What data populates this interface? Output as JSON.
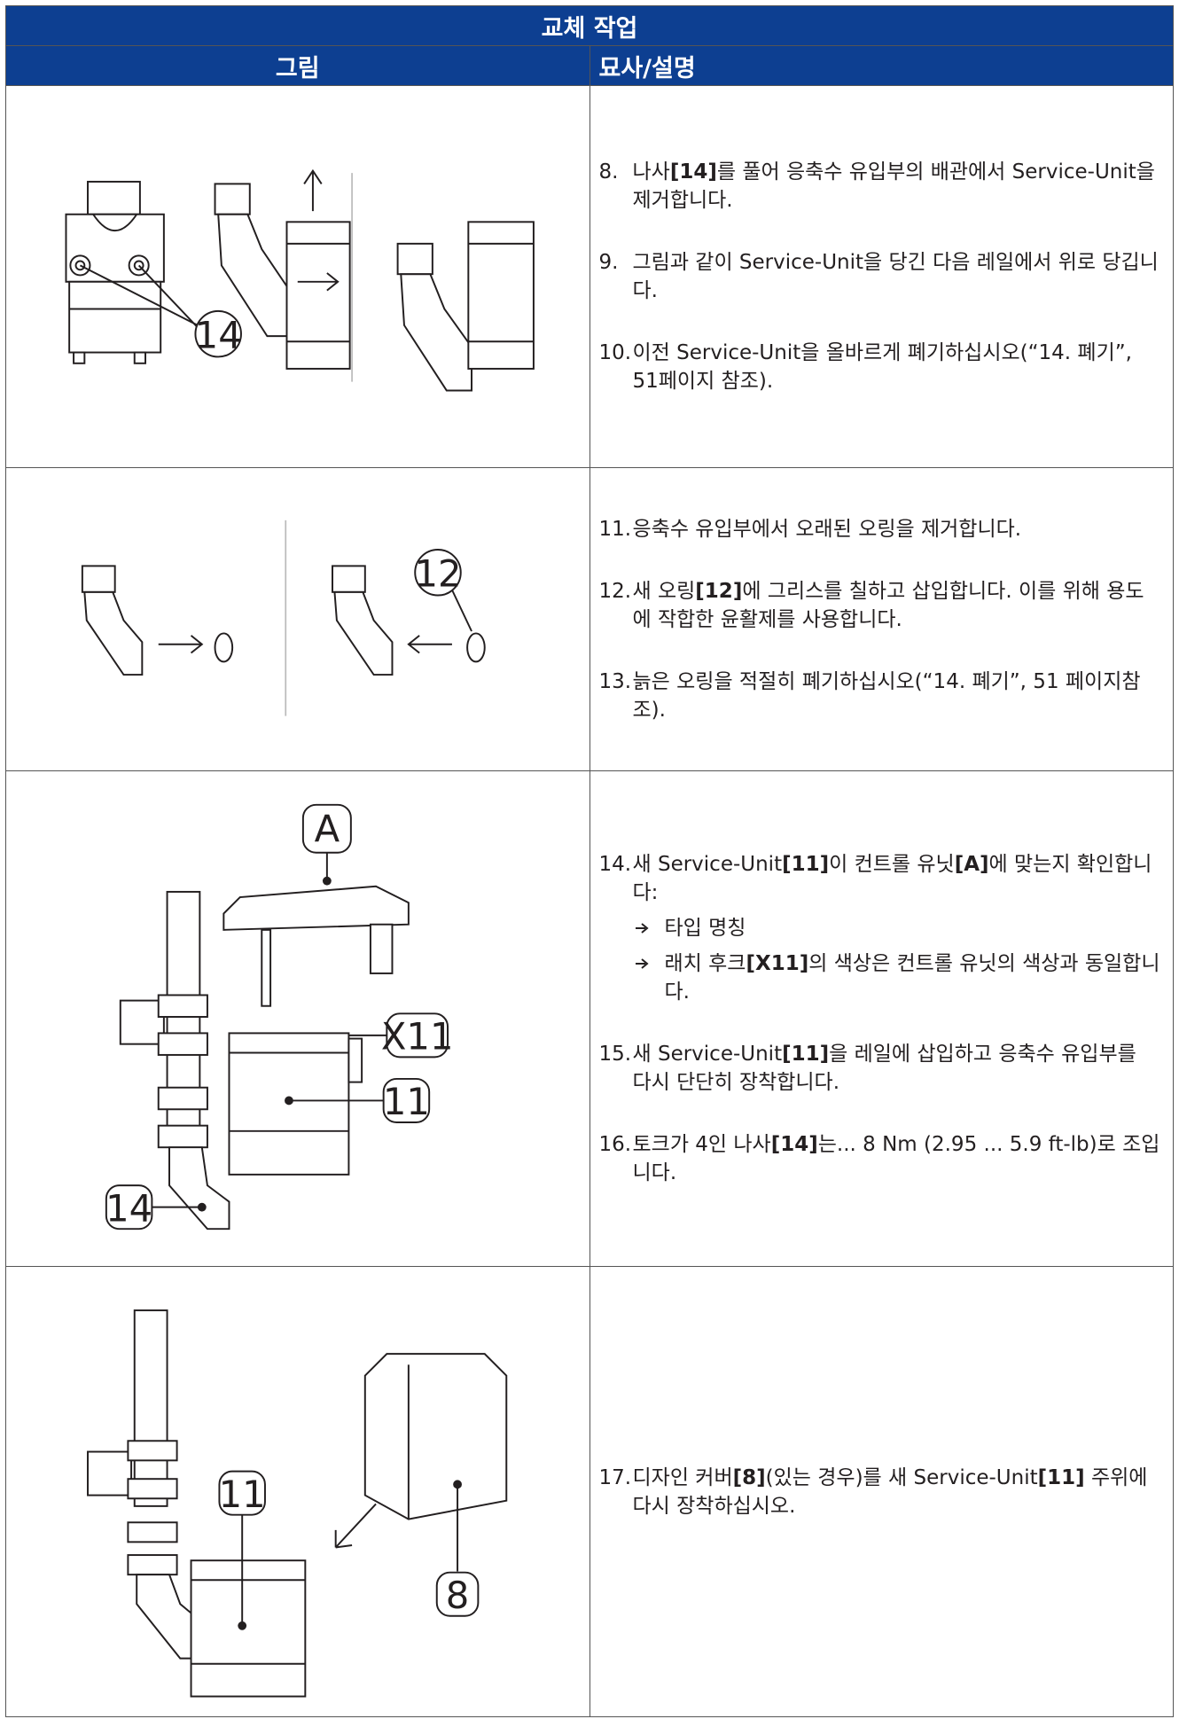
{
  "header": {
    "title": "교체 작업",
    "col1": "그림",
    "col2": "묘사/설명"
  },
  "rows": [
    {
      "labels": [
        "14"
      ],
      "steps": [
        {
          "num": "8.",
          "parts": [
            {
              "t": "나사"
            },
            {
              "t": "[14]",
              "b": true
            },
            {
              "t": "를 풀어 응축수 유입부의 배관에서 Service-Unit을 제거합니다."
            }
          ]
        },
        {
          "num": "9.",
          "parts": [
            {
              "t": "그림과 같이 Service-Unit을 당긴 다음 레일에서 위로 당깁니다."
            }
          ]
        },
        {
          "num": "10.",
          "parts": [
            {
              "t": "이전 Service-Unit을 올바르게 폐기하십시오(“14. 폐기”, 51페이지 참조)."
            }
          ]
        }
      ]
    },
    {
      "labels": [
        "12"
      ],
      "steps": [
        {
          "num": "11.",
          "parts": [
            {
              "t": "응축수 유입부에서 오래된 오링을 제거합니다."
            }
          ]
        },
        {
          "num": "12.",
          "parts": [
            {
              "t": "새 오링"
            },
            {
              "t": "[12]",
              "b": true
            },
            {
              "t": "에 그리스를 칠하고 삽입합니다. 이를 위해 용도에 작합한 윤활제를 사용합니다."
            }
          ]
        },
        {
          "num": "13.",
          "parts": [
            {
              "t": "늙은 오링을 적절히 폐기하십시오(“14. 폐기”, 51 페이지참조)."
            }
          ]
        }
      ]
    },
    {
      "labels": [
        "A",
        "X11",
        "11",
        "14"
      ],
      "steps": [
        {
          "num": "14.",
          "parts": [
            {
              "t": "새 Service-Unit"
            },
            {
              "t": "[11]",
              "b": true
            },
            {
              "t": "이 컨트롤 유닛"
            },
            {
              "t": "[A]",
              "b": true
            },
            {
              "t": "에 맞는지 확인합니다:"
            }
          ],
          "bullets": [
            {
              "parts": [
                {
                  "t": "타입 명칭"
                }
              ]
            },
            {
              "parts": [
                {
                  "t": "래치 후크"
                },
                {
                  "t": "[X11]",
                  "b": true
                },
                {
                  "t": "의 색상은 컨트롤 유닛의 색상과 동일합니다."
                }
              ]
            }
          ]
        },
        {
          "num": "15.",
          "parts": [
            {
              "t": "새 Service-Unit"
            },
            {
              "t": "[11]",
              "b": true
            },
            {
              "t": "을 레일에 삽입하고 응축수 유입부를 다시 단단히 장착합니다."
            }
          ]
        },
        {
          "num": "16.",
          "parts": [
            {
              "t": "토크가 4인 나사"
            },
            {
              "t": "[14]",
              "b": true
            },
            {
              "t": "는... 8 Nm (2.95 ... 5.9 ft-lb)로 조입니다."
            }
          ]
        }
      ]
    },
    {
      "labels": [
        "11",
        "8"
      ],
      "steps": [
        {
          "num": "17.",
          "parts": [
            {
              "t": "디자인 커버"
            },
            {
              "t": "[8]",
              "b": true
            },
            {
              "t": "(있는 경우)를 새 Service-Unit"
            },
            {
              "t": "[11]",
              "b": true
            },
            {
              "t": " 주위에 다시 장착하십시오."
            }
          ]
        }
      ]
    }
  ]
}
